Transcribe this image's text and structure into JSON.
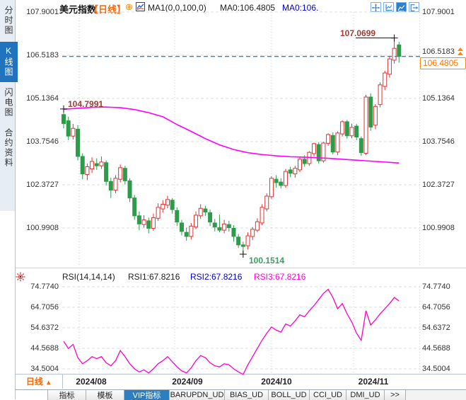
{
  "colors": {
    "up": "#dd3434",
    "down": "#2e9b4a",
    "ma": "#ff00ff",
    "rsi": "#ff00cc",
    "price_line": "#2a85d8",
    "accent_orange": "#ff6600",
    "annotation_red": "#a23b32",
    "annotation_green": "#3f9e63",
    "selected_blue": "#2273bd",
    "link_blue": "#0000cc",
    "grid": "#dcdcdc"
  },
  "sidebar": {
    "items": [
      {
        "label": "分时图",
        "selected": false
      },
      {
        "label": "K线图",
        "selected": true
      },
      {
        "label": "闪电图",
        "selected": false
      },
      {
        "label": "合约资料",
        "selected": false
      }
    ]
  },
  "header": {
    "title": "美元指数",
    "period_tag": "【日线】",
    "plus_icon": "⊕",
    "ma_params": "MA1(0,0,100,0)",
    "ma0": "MA0:106.4805",
    "ma0_alt": "MA0:106."
  },
  "price_axis": {
    "labels": [
      "107.9001",
      "106.5183",
      "105.1364",
      "103.7546",
      "102.3727",
      "100.9908"
    ],
    "price_line_label": "106.5183",
    "current_price": "106.4805"
  },
  "annotations": {
    "high": "107.0699",
    "left_high": "104.7991",
    "low": "100.1514"
  },
  "rsi_panel": {
    "title": "RSI(14,14,14)",
    "rsi1": "RSI1:67.8216",
    "rsi2": "RSI2:67.8216",
    "rsi3": "RSI3:67.8216",
    "axis": [
      "74.7740",
      "64.7056",
      "54.6372",
      "44.5688",
      "34.5004"
    ]
  },
  "xaxis": {
    "period": "日线",
    "period_arrow": "▲",
    "months": [
      "2024/08",
      "2024/09",
      "2024/10",
      "2024/11"
    ]
  },
  "tabs": {
    "selected": "VIP指标",
    "items": [
      "指标",
      "模板",
      "VIP指标",
      "BARUPDN_UD",
      "BIAS_UD",
      "BOLL_UD",
      "CCI_UD",
      "DMI_UD",
      ">>"
    ]
  },
  "chart_data": {
    "type": "candlestick+line",
    "title": "美元指数 日线 (US Dollar Index, daily)",
    "ylim": [
      100.9908,
      107.9001
    ],
    "y_ticks": [
      107.9001,
      106.5183,
      105.1364,
      103.7546,
      102.3727,
      100.9908
    ],
    "x_tick_labels": [
      "2024/08",
      "2024/09",
      "2024/10",
      "2024/11"
    ],
    "month_grid_index": [
      3.3,
      23.5,
      44,
      61.4
    ],
    "marked_high": 107.0699,
    "marked_low": 100.1514,
    "first_high": 104.7991,
    "last_close": 106.4805,
    "candles": [
      [
        104.62,
        104.7991,
        104.18,
        104.33
      ],
      [
        104.42,
        104.55,
        103.8,
        103.93
      ],
      [
        103.93,
        104.32,
        103.82,
        104.18
      ],
      [
        104.15,
        104.28,
        103.15,
        103.28
      ],
      [
        103.28,
        103.38,
        102.55,
        102.72
      ],
      [
        102.7,
        103.05,
        102.52,
        102.95
      ],
      [
        102.88,
        103.25,
        102.75,
        103.12
      ],
      [
        103.05,
        103.22,
        102.85,
        102.98
      ],
      [
        102.98,
        103.28,
        102.88,
        103.1
      ],
      [
        103.08,
        103.15,
        102.35,
        102.48
      ],
      [
        102.48,
        102.6,
        101.95,
        102.2
      ],
      [
        102.2,
        102.68,
        102.1,
        102.58
      ],
      [
        102.55,
        103.02,
        102.45,
        102.92
      ],
      [
        102.9,
        102.98,
        102.38,
        102.5
      ],
      [
        102.5,
        102.58,
        101.82,
        101.95
      ],
      [
        101.95,
        102.05,
        101.25,
        101.38
      ],
      [
        101.38,
        101.52,
        100.92,
        101.12
      ],
      [
        101.1,
        101.4,
        101.0,
        101.25
      ],
      [
        101.22,
        101.32,
        100.82,
        100.98
      ],
      [
        100.98,
        101.45,
        100.9,
        101.32
      ],
      [
        101.3,
        101.78,
        101.22,
        101.65
      ],
      [
        101.6,
        101.88,
        101.48,
        101.75
      ],
      [
        101.72,
        102.02,
        101.62,
        101.9
      ],
      [
        101.88,
        101.95,
        101.45,
        101.58
      ],
      [
        101.55,
        101.65,
        101.05,
        101.18
      ],
      [
        101.15,
        101.25,
        100.75,
        100.88
      ],
      [
        100.85,
        101.0,
        100.58,
        100.72
      ],
      [
        100.72,
        101.15,
        100.62,
        101.05
      ],
      [
        101.02,
        101.52,
        100.95,
        101.4
      ],
      [
        101.38,
        101.75,
        101.28,
        101.62
      ],
      [
        101.6,
        101.7,
        101.38,
        101.5
      ],
      [
        101.48,
        101.58,
        101.05,
        101.18
      ],
      [
        101.15,
        101.28,
        100.88,
        101.02
      ],
      [
        101.0,
        101.42,
        100.85,
        100.92
      ],
      [
        100.92,
        101.25,
        100.82,
        101.12
      ],
      [
        101.1,
        101.22,
        100.88,
        101.0
      ],
      [
        100.98,
        101.08,
        100.55,
        100.72
      ],
      [
        100.7,
        100.8,
        100.35,
        100.45
      ],
      [
        100.45,
        100.55,
        100.1514,
        100.4
      ],
      [
        100.42,
        100.85,
        100.3,
        100.74
      ],
      [
        100.72,
        101.02,
        100.6,
        100.95
      ],
      [
        100.92,
        101.3,
        100.85,
        101.19
      ],
      [
        101.15,
        101.75,
        101.08,
        101.65
      ],
      [
        101.6,
        102.1,
        101.52,
        102.01
      ],
      [
        101.99,
        102.65,
        101.92,
        102.58
      ],
      [
        102.55,
        102.68,
        102.28,
        102.44
      ],
      [
        102.46,
        102.58,
        102.25,
        102.35
      ],
      [
        102.35,
        102.88,
        102.28,
        102.8
      ],
      [
        102.85,
        102.95,
        102.62,
        102.74
      ],
      [
        102.72,
        102.98,
        102.6,
        102.9
      ],
      [
        102.85,
        103.25,
        102.78,
        103.19
      ],
      [
        103.19,
        103.32,
        102.95,
        103.05
      ],
      [
        103.05,
        103.45,
        102.98,
        103.41
      ],
      [
        103.37,
        103.72,
        103.28,
        103.69
      ],
      [
        103.66,
        103.74,
        103.05,
        103.14
      ],
      [
        103.14,
        103.75,
        103.08,
        103.71
      ],
      [
        103.7,
        104.02,
        103.62,
        103.98
      ],
      [
        103.95,
        104.05,
        103.35,
        103.42
      ],
      [
        103.42,
        104.08,
        103.32,
        104.03
      ],
      [
        104.0,
        104.43,
        103.92,
        104.39
      ],
      [
        104.39,
        104.45,
        103.85,
        103.94
      ],
      [
        103.94,
        104.33,
        103.86,
        104.21
      ],
      [
        104.25,
        104.32,
        103.8,
        103.9
      ],
      [
        103.85,
        103.92,
        103.3,
        103.4
      ],
      [
        103.38,
        105.25,
        103.32,
        105.18
      ],
      [
        105.18,
        105.3,
        104.1,
        104.22
      ],
      [
        104.28,
        104.95,
        104.15,
        104.88
      ],
      [
        104.94,
        105.65,
        104.85,
        105.57
      ],
      [
        105.52,
        106.02,
        105.4,
        105.95
      ],
      [
        105.91,
        106.48,
        105.8,
        106.4
      ],
      [
        106.36,
        107.0699,
        106.25,
        106.74
      ],
      [
        106.85,
        106.95,
        106.28,
        106.4805
      ]
    ],
    "ma100": [
      [
        0,
        104.79
      ],
      [
        3,
        104.82
      ],
      [
        6,
        104.85
      ],
      [
        9,
        104.86
      ],
      [
        12,
        104.84
      ],
      [
        15,
        104.78
      ],
      [
        18,
        104.68
      ],
      [
        21,
        104.55
      ],
      [
        24,
        104.3
      ],
      [
        27,
        104.08
      ],
      [
        30,
        103.85
      ],
      [
        33,
        103.65
      ],
      [
        36,
        103.5
      ],
      [
        39,
        103.4
      ],
      [
        42,
        103.34
      ],
      [
        45,
        103.3
      ],
      [
        48,
        103.27
      ],
      [
        52,
        103.25
      ],
      [
        56,
        103.22
      ],
      [
        60,
        103.18
      ],
      [
        64,
        103.14
      ],
      [
        68,
        103.1
      ],
      [
        71,
        103.07
      ]
    ],
    "rsi": {
      "ylim": [
        34.5004,
        74.774
      ],
      "y_ticks": [
        74.774,
        64.7056,
        54.6372,
        44.5688,
        34.5004
      ],
      "values": [
        48,
        44.5,
        46.5,
        40,
        37,
        38.5,
        40.5,
        39.5,
        40.5,
        37.5,
        36,
        38.5,
        43.5,
        40.5,
        37,
        34.5,
        33,
        34,
        32.5,
        34.5,
        37,
        38.5,
        40.5,
        38,
        35.5,
        33.5,
        32.5,
        35,
        38.5,
        41,
        40,
        37.5,
        36,
        35.5,
        37,
        36.5,
        34.5,
        33,
        31.8,
        36.5,
        40.5,
        44.5,
        48.5,
        52,
        55,
        53.5,
        52.5,
        56.5,
        55.5,
        58,
        61,
        60,
        63,
        65.5,
        68.5,
        71.5,
        73.5,
        69.5,
        64,
        66.5,
        61.5,
        57.5,
        52,
        48.5,
        63,
        56,
        58.5,
        61.5,
        64,
        66.5,
        69.5,
        67.8216
      ]
    }
  }
}
